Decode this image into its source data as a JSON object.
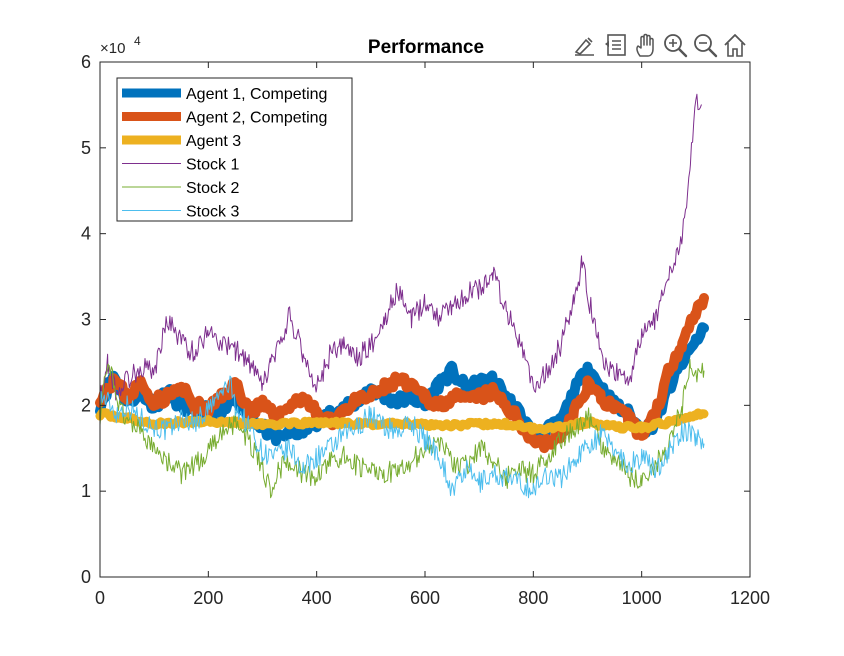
{
  "chart_data": {
    "type": "line",
    "title": "Performance",
    "xlabel": "",
    "ylabel": "",
    "xlim": [
      0,
      1200
    ],
    "ylim": [
      0,
      60000
    ],
    "y_display_divisor": 10000,
    "y_exponent_base": "×10",
    "y_exponent_power": "4",
    "x_ticks": [
      0,
      200,
      400,
      600,
      800,
      1000,
      1200
    ],
    "y_ticks": [
      0,
      10000,
      20000,
      30000,
      40000,
      50000,
      60000
    ],
    "x_tick_labels": [
      "0",
      "200",
      "400",
      "600",
      "800",
      "1000",
      "1200"
    ],
    "y_tick_labels": [
      "0",
      "1",
      "2",
      "3",
      "4",
      "5",
      "6"
    ],
    "grid": false,
    "legend_position": "top-left",
    "series": [
      {
        "name": "Agent 1, Competing",
        "color": "#0072BD",
        "weight": "thick",
        "x": [
          0,
          25,
          50,
          75,
          100,
          125,
          150,
          175,
          200,
          225,
          250,
          275,
          300,
          325,
          350,
          375,
          400,
          425,
          450,
          475,
          500,
          525,
          550,
          575,
          600,
          625,
          650,
          675,
          700,
          725,
          750,
          775,
          800,
          825,
          850,
          875,
          900,
          925,
          950,
          975,
          1000,
          1025,
          1050,
          1075,
          1100,
          1115
        ],
        "values": [
          20000,
          23500,
          20500,
          21500,
          20000,
          21500,
          20000,
          19000,
          19500,
          19000,
          21000,
          19000,
          17500,
          16000,
          17000,
          17000,
          18000,
          19000,
          19500,
          20500,
          22000,
          21000,
          20500,
          21000,
          20000,
          22500,
          24000,
          22000,
          22500,
          23000,
          21000,
          19000,
          16500,
          17000,
          18000,
          21500,
          24500,
          22000,
          20000,
          19000,
          17000,
          18000,
          22000,
          25000,
          27500,
          29000
        ]
      },
      {
        "name": "Agent 2, Competing",
        "color": "#D95319",
        "weight": "thick",
        "x": [
          0,
          25,
          50,
          75,
          100,
          125,
          150,
          175,
          200,
          225,
          250,
          275,
          300,
          325,
          350,
          375,
          400,
          425,
          450,
          475,
          500,
          525,
          550,
          575,
          600,
          625,
          650,
          675,
          700,
          725,
          750,
          775,
          800,
          825,
          850,
          875,
          900,
          925,
          950,
          975,
          1000,
          1025,
          1050,
          1075,
          1100,
          1115
        ],
        "values": [
          21000,
          23000,
          21000,
          22500,
          20500,
          21000,
          22000,
          20000,
          19500,
          21000,
          22500,
          19500,
          20000,
          18500,
          20000,
          21000,
          19000,
          18000,
          19500,
          20500,
          21000,
          22000,
          23000,
          22000,
          21000,
          20000,
          21000,
          20500,
          21000,
          21500,
          20000,
          18000,
          16000,
          15500,
          16500,
          19000,
          22500,
          21000,
          19500,
          18500,
          16500,
          19000,
          24000,
          27500,
          31000,
          32500
        ]
      },
      {
        "name": "Agent 3",
        "color": "#EDB120",
        "weight": "thick",
        "x": [
          0,
          50,
          100,
          150,
          200,
          250,
          300,
          350,
          400,
          450,
          500,
          550,
          600,
          650,
          700,
          750,
          800,
          850,
          900,
          950,
          1000,
          1050,
          1100,
          1115
        ],
        "values": [
          19000,
          18500,
          17800,
          18000,
          18200,
          18000,
          17800,
          17800,
          18000,
          17900,
          17800,
          17900,
          17800,
          17700,
          17800,
          17800,
          17300,
          17500,
          18000,
          17500,
          17400,
          18000,
          19000,
          19000
        ]
      },
      {
        "name": "Stock 1",
        "color": "#7E2F8E",
        "weight": "thin",
        "x": [
          0,
          15,
          30,
          50,
          75,
          100,
          125,
          150,
          175,
          200,
          225,
          250,
          275,
          300,
          315,
          330,
          350,
          375,
          400,
          425,
          450,
          475,
          500,
          525,
          550,
          575,
          600,
          625,
          650,
          675,
          700,
          725,
          750,
          775,
          790,
          800,
          825,
          850,
          875,
          890,
          910,
          930,
          950,
          975,
          1000,
          1025,
          1050,
          1075,
          1090,
          1100,
          1110
        ],
        "values": [
          20500,
          25000,
          21500,
          23000,
          24500,
          24000,
          30000,
          27500,
          26000,
          29000,
          27000,
          26500,
          25000,
          22000,
          25000,
          26500,
          30500,
          26000,
          22000,
          26000,
          27000,
          25500,
          27000,
          30000,
          33500,
          30000,
          32000,
          30500,
          31500,
          33000,
          33500,
          35500,
          31000,
          27000,
          25000,
          21500,
          24000,
          27000,
          32000,
          36500,
          30000,
          25000,
          24000,
          22500,
          28000,
          30000,
          35000,
          40000,
          48000,
          55000,
          55000
        ]
      },
      {
        "name": "Stock 2",
        "color": "#77AC30",
        "weight": "thin",
        "x": [
          0,
          15,
          30,
          50,
          75,
          100,
          125,
          150,
          175,
          200,
          225,
          250,
          275,
          300,
          315,
          330,
          350,
          375,
          400,
          425,
          450,
          475,
          500,
          525,
          550,
          575,
          600,
          625,
          650,
          675,
          700,
          725,
          750,
          775,
          800,
          825,
          850,
          875,
          900,
          925,
          950,
          975,
          1000,
          1025,
          1050,
          1075,
          1090,
          1100,
          1115
        ],
        "values": [
          19000,
          25500,
          20500,
          18500,
          17000,
          14500,
          13500,
          12000,
          13000,
          14500,
          17000,
          18000,
          16000,
          12500,
          10500,
          12500,
          13500,
          12000,
          11500,
          13500,
          14000,
          13000,
          12500,
          12000,
          12500,
          13500,
          15000,
          16000,
          13500,
          13000,
          15000,
          14000,
          11500,
          12500,
          12000,
          14000,
          16000,
          17000,
          19000,
          15500,
          13500,
          12000,
          11000,
          13000,
          15000,
          20000,
          24500,
          23500,
          24000
        ]
      },
      {
        "name": "Stock 3",
        "color": "#4DBEEE",
        "weight": "thin",
        "x": [
          0,
          15,
          30,
          50,
          75,
          100,
          125,
          150,
          175,
          200,
          225,
          240,
          250,
          275,
          300,
          325,
          350,
          375,
          400,
          425,
          450,
          475,
          500,
          525,
          550,
          575,
          600,
          625,
          650,
          675,
          700,
          725,
          750,
          775,
          800,
          825,
          850,
          875,
          900,
          925,
          950,
          975,
          1000,
          1025,
          1050,
          1075,
          1100,
          1115
        ],
        "values": [
          21000,
          20500,
          19000,
          20000,
          18500,
          17500,
          17000,
          18500,
          18000,
          19500,
          21500,
          22500,
          20000,
          17500,
          14500,
          14000,
          15000,
          12500,
          14000,
          15000,
          16500,
          17500,
          19000,
          17500,
          17000,
          18000,
          16000,
          14500,
          10000,
          12500,
          11000,
          12000,
          11500,
          11000,
          10000,
          12000,
          11500,
          13500,
          15500,
          16500,
          15000,
          13000,
          14000,
          12500,
          14500,
          17000,
          16500,
          15500
        ]
      }
    ]
  },
  "toolbar": {
    "buttons": [
      {
        "name": "data-tips-icon"
      },
      {
        "name": "data-brush-icon"
      },
      {
        "name": "pan-hand-icon"
      },
      {
        "name": "zoom-in-icon"
      },
      {
        "name": "zoom-out-icon"
      },
      {
        "name": "home-restore-icon"
      }
    ]
  }
}
